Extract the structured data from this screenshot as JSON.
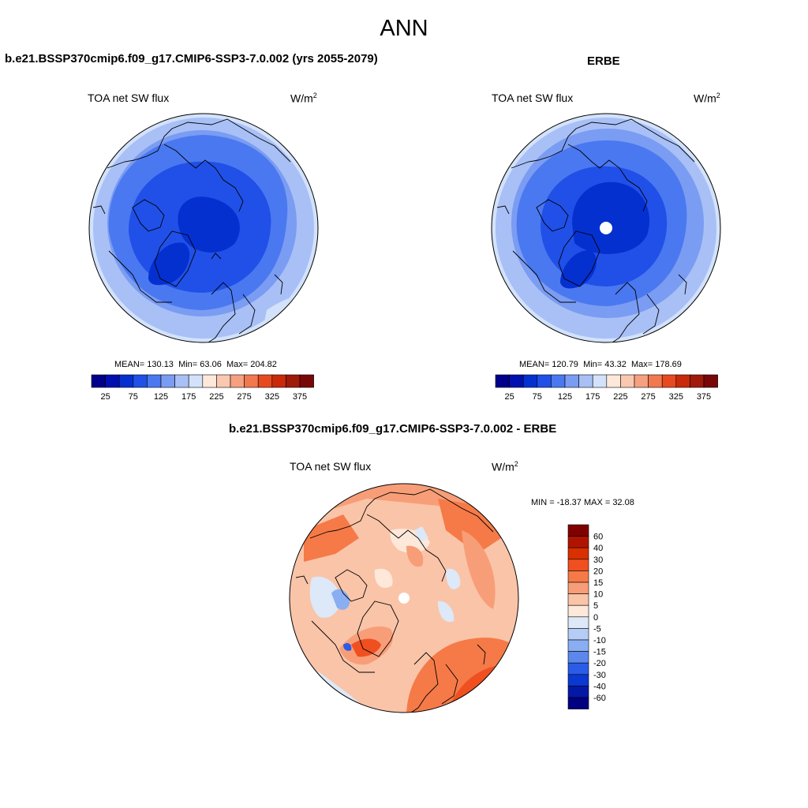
{
  "figure": {
    "season": "ANN"
  },
  "panels": {
    "model": {
      "title": "b.e21.BSSP370cmip6.f09_g17.CMIP6-SSP3-7.0.002 (yrs 2055-2079)",
      "variable": "TOA net SW flux",
      "units_base": "W/m",
      "units_exp": "2",
      "stats": {
        "mean_label": "MEAN=",
        "mean": "130.13",
        "min_label": "Min=",
        "min": "63.06",
        "max_label": "Max=",
        "max": "204.82"
      }
    },
    "obs": {
      "title": "ERBE",
      "variable": "TOA net SW flux",
      "units_base": "W/m",
      "units_exp": "2",
      "stats": {
        "mean_label": "MEAN=",
        "mean": "120.79",
        "min_label": "Min=",
        "min": "43.32",
        "max_label": "Max=",
        "max": "178.69"
      }
    },
    "diff": {
      "title": "b.e21.BSSP370cmip6.f09_g17.CMIP6-SSP3-7.0.002 - ERBE",
      "variable": "TOA net SW flux",
      "units_base": "W/m",
      "units_exp": "2",
      "range_text": "MIN = -18.37 MAX =  32.08"
    }
  },
  "colorbars": {
    "abs": {
      "colors": [
        "#00008a",
        "#0010b0",
        "#0530d0",
        "#2050e8",
        "#4a78f0",
        "#7a9cf2",
        "#a8c0f6",
        "#d3e2fa",
        "#fde8da",
        "#fac8b0",
        "#f6a080",
        "#f27850",
        "#e84a20",
        "#c82a0a",
        "#a01a0a",
        "#780808"
      ],
      "labels": [
        "25",
        "75",
        "125",
        "175",
        "225",
        "275",
        "325",
        "375"
      ]
    },
    "diff": {
      "colors": [
        "#800000",
        "#b01400",
        "#d83000",
        "#f05020",
        "#f57a48",
        "#f79e78",
        "#fac4a8",
        "#fde8da",
        "#dde8f8",
        "#b4ccf6",
        "#8aaef2",
        "#5c88ee",
        "#2a5ce8",
        "#0a38d0",
        "#0418a8",
        "#000080"
      ],
      "labels": [
        "60",
        "40",
        "30",
        "20",
        "15",
        "10",
        "5",
        "0",
        "-5",
        "-10",
        "-15",
        "-20",
        "-30",
        "-40",
        "-60"
      ]
    }
  }
}
